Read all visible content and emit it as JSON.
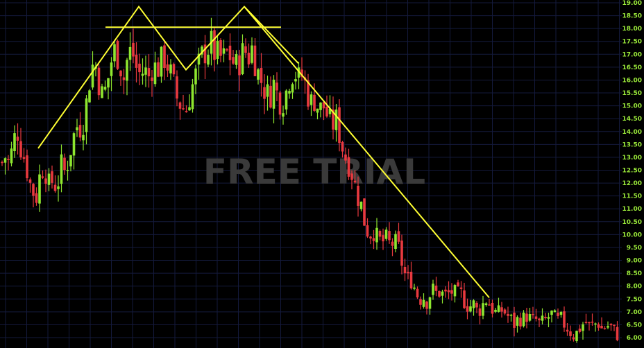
{
  "watermark": "FREE TRIAL",
  "colors": {
    "background": "#000000",
    "grid": "#141a3c",
    "up": "#8ee62f",
    "down": "#e8393f",
    "pattern_line": "#ffff33",
    "axis_text": "#9bea3a",
    "watermark": "#3a3a3a"
  },
  "chart_data": {
    "type": "candlestick",
    "title": "",
    "xlabel": "",
    "ylabel": "",
    "ylim": [
      5.9,
      19.0
    ],
    "grid": true,
    "y_ticks": [
      "6.00",
      "6.50",
      "7.00",
      "7.50",
      "8.00",
      "8.50",
      "9.00",
      "9.50",
      "10.00",
      "10.50",
      "11.00",
      "11.50",
      "12.00",
      "12.50",
      "13.00",
      "13.50",
      "14.00",
      "14.50",
      "15.00",
      "15.50",
      "16.00",
      "16.50",
      "17.00",
      "17.50",
      "18.00",
      "18.50",
      "19.00"
    ],
    "price_path": [
      [
        0,
        12.5
      ],
      [
        6,
        13.1
      ],
      [
        12,
        12.8
      ],
      [
        18,
        13.3
      ],
      [
        24,
        14.2
      ],
      [
        30,
        13.4
      ],
      [
        36,
        12.9
      ],
      [
        44,
        11.9
      ],
      [
        52,
        11.4
      ],
      [
        58,
        12.4
      ],
      [
        64,
        12.7
      ],
      [
        70,
        11.9
      ],
      [
        76,
        12.1
      ],
      [
        82,
        11.8
      ],
      [
        88,
        12.7
      ],
      [
        94,
        12.4
      ],
      [
        100,
        13.1
      ],
      [
        106,
        13.8
      ],
      [
        112,
        14.3
      ],
      [
        118,
        14.1
      ],
      [
        124,
        15.0
      ],
      [
        130,
        16.2
      ],
      [
        136,
        16.8
      ],
      [
        142,
        16.0
      ],
      [
        148,
        15.3
      ],
      [
        154,
        15.8
      ],
      [
        160,
        16.7
      ],
      [
        166,
        17.2
      ],
      [
        172,
        16.8
      ],
      [
        178,
        16.0
      ],
      [
        184,
        16.9
      ],
      [
        190,
        17.2
      ],
      [
        196,
        16.5
      ],
      [
        202,
        16.2
      ],
      [
        208,
        16.4
      ],
      [
        214,
        16.1
      ],
      [
        220,
        16.6
      ],
      [
        226,
        16.4
      ],
      [
        232,
        16.7
      ],
      [
        238,
        16.9
      ],
      [
        244,
        16.4
      ],
      [
        250,
        15.8
      ],
      [
        256,
        15.2
      ],
      [
        262,
        15.0
      ],
      [
        268,
        14.8
      ],
      [
        274,
        15.5
      ],
      [
        280,
        16.0
      ],
      [
        286,
        16.5
      ],
      [
        292,
        17.0
      ],
      [
        298,
        17.2
      ],
      [
        304,
        17.4
      ],
      [
        310,
        17.0
      ],
      [
        316,
        16.9
      ],
      [
        322,
        16.8
      ],
      [
        328,
        17.1
      ],
      [
        334,
        16.8
      ],
      [
        340,
        16.5
      ],
      [
        346,
        16.8
      ],
      [
        352,
        17.2
      ],
      [
        358,
        16.9
      ],
      [
        364,
        17.3
      ],
      [
        370,
        16.4
      ],
      [
        376,
        16.0
      ],
      [
        382,
        15.6
      ],
      [
        388,
        15.3
      ],
      [
        394,
        15.9
      ],
      [
        400,
        15.4
      ],
      [
        406,
        15.1
      ],
      [
        412,
        15.5
      ],
      [
        418,
        16.2
      ],
      [
        424,
        16.4
      ],
      [
        430,
        16.0
      ],
      [
        436,
        16.2
      ],
      [
        442,
        15.6
      ],
      [
        448,
        15.1
      ],
      [
        454,
        15.3
      ],
      [
        460,
        14.8
      ],
      [
        466,
        15.0
      ],
      [
        472,
        14.6
      ],
      [
        478,
        14.2
      ],
      [
        484,
        14.5
      ],
      [
        490,
        13.8
      ],
      [
        496,
        13.1
      ],
      [
        502,
        12.8
      ],
      [
        508,
        12.3
      ],
      [
        514,
        11.6
      ],
      [
        520,
        11.2
      ],
      [
        526,
        10.4
      ],
      [
        532,
        10.0
      ],
      [
        538,
        10.2
      ],
      [
        544,
        9.8
      ],
      [
        550,
        9.7
      ],
      [
        556,
        9.8
      ],
      [
        562,
        9.6
      ],
      [
        568,
        9.7
      ],
      [
        574,
        9.5
      ],
      [
        580,
        8.8
      ],
      [
        586,
        8.2
      ],
      [
        592,
        8.3
      ],
      [
        598,
        7.9
      ],
      [
        604,
        7.5
      ],
      [
        610,
        7.6
      ],
      [
        616,
        7.4
      ],
      [
        622,
        7.9
      ],
      [
        628,
        7.7
      ],
      [
        634,
        7.8
      ],
      [
        640,
        7.6
      ],
      [
        646,
        7.7
      ],
      [
        652,
        7.8
      ],
      [
        658,
        7.6
      ],
      [
        664,
        7.7
      ],
      [
        670,
        7.4
      ],
      [
        676,
        7.2
      ],
      [
        682,
        7.3
      ],
      [
        688,
        7.0
      ],
      [
        694,
        7.2
      ],
      [
        700,
        7.5
      ],
      [
        706,
        7.3
      ],
      [
        712,
        7.0
      ],
      [
        718,
        6.9
      ],
      [
        724,
        7.1
      ],
      [
        730,
        6.9
      ],
      [
        736,
        6.7
      ],
      [
        742,
        6.5
      ],
      [
        748,
        6.8
      ],
      [
        754,
        6.7
      ],
      [
        760,
        6.9
      ],
      [
        766,
        6.6
      ],
      [
        772,
        6.7
      ],
      [
        778,
        6.5
      ],
      [
        784,
        6.6
      ],
      [
        790,
        6.8
      ],
      [
        796,
        6.9
      ],
      [
        802,
        6.6
      ],
      [
        808,
        6.7
      ],
      [
        814,
        6.5
      ],
      [
        820,
        6.3
      ],
      [
        826,
        6.1
      ],
      [
        832,
        6.2
      ],
      [
        838,
        6.5
      ],
      [
        844,
        6.6
      ],
      [
        850,
        6.4
      ],
      [
        856,
        6.5
      ],
      [
        862,
        6.6
      ],
      [
        868,
        6.3
      ],
      [
        874,
        6.5
      ],
      [
        880,
        6.4
      ],
      [
        886,
        6.2
      ],
      [
        892,
        6.1
      ]
    ],
    "pattern_lines": [
      {
        "name": "uptrend-line",
        "points": [
          [
            55,
            13.35
          ],
          [
            200,
            18.85
          ]
        ]
      },
      {
        "name": "double-top-zigzag",
        "points": [
          [
            55,
            13.35
          ],
          [
            200,
            18.85
          ],
          [
            268,
            16.4
          ],
          [
            352,
            18.85
          ],
          [
            430,
            16.65
          ]
        ]
      },
      {
        "name": "neckline",
        "points": [
          [
            152,
            18.05
          ],
          [
            405,
            18.05
          ]
        ]
      },
      {
        "name": "downtrend-line",
        "points": [
          [
            352,
            18.85
          ],
          [
            705,
            7.55
          ]
        ]
      }
    ]
  }
}
